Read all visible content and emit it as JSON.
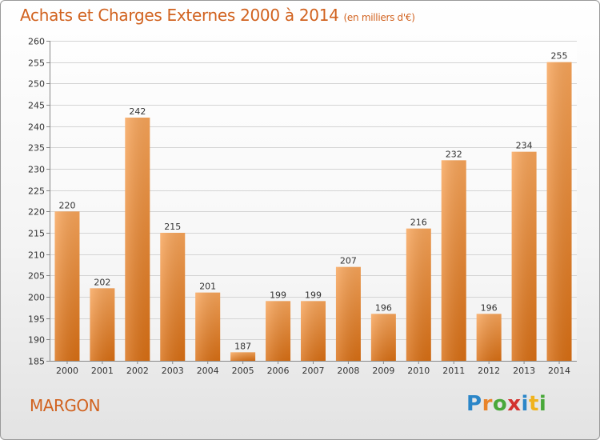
{
  "header": {
    "title": "Achats et Charges Externes 2000 à 2014",
    "unit": "(en milliers d'€)"
  },
  "footer": {
    "commune": "MARGON",
    "logo": [
      "P",
      "r",
      "o",
      "x",
      "i",
      "t",
      "i"
    ]
  },
  "colors": {
    "accent": "#d1621f",
    "bar_light": "#f8a55a",
    "bar_dark": "#d96f14"
  },
  "chart_data": {
    "type": "bar",
    "title": "Achats et Charges Externes 2000 à 2014",
    "unit": "(en milliers d'€)",
    "categories": [
      "2000",
      "2001",
      "2002",
      "2003",
      "2004",
      "2005",
      "2006",
      "2007",
      "2008",
      "2009",
      "2010",
      "2011",
      "2012",
      "2013",
      "2014"
    ],
    "values": [
      220,
      202,
      242,
      215,
      201,
      187,
      199,
      199,
      207,
      196,
      216,
      232,
      196,
      234,
      255
    ],
    "ylim": [
      185,
      260
    ],
    "yticks": [
      185,
      190,
      195,
      200,
      205,
      210,
      215,
      220,
      225,
      230,
      235,
      240,
      245,
      250,
      255,
      260
    ],
    "grid": true,
    "legend": "none"
  }
}
